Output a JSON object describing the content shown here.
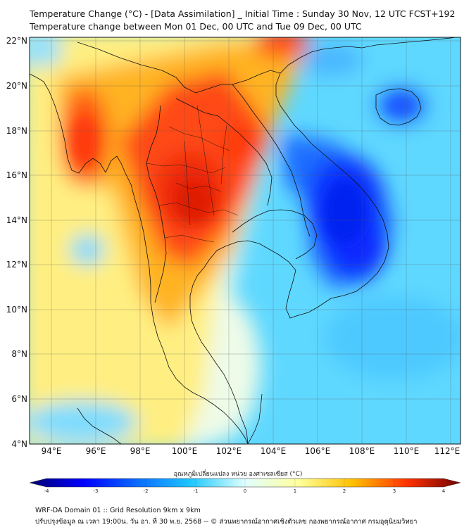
{
  "title_line1": "Temperature Change (°C) - [Data Assimilation] _ Initial Time : Sunday 30 Nov, 12 UTC FCST+192",
  "title_line2": "Temperature change between Mon 01 Dec, 00 UTC and Tue 09 Dec, 00 UTC",
  "lat_labels": [
    "22°N",
    "20°N",
    "18°N",
    "16°N",
    "14°N",
    "12°N",
    "10°N",
    "8°N",
    "6°N",
    "4°N"
  ],
  "lon_labels": [
    "94°E",
    "96°E",
    "98°E",
    "100°E",
    "102°E",
    "104°E",
    "106°E",
    "108°E",
    "110°E",
    "112°E"
  ],
  "colorbar": {
    "title": "อุณหภูมิเปลี่ยนแปลง หน่วย องศาเซลเซียส (°C)",
    "ticks": [
      "-4",
      "-3",
      "-2",
      "-1",
      "0",
      "1",
      "2",
      "3",
      "4"
    ],
    "colors": [
      "#00006e",
      "#0000ff",
      "#0b6bff",
      "#1fc8ff",
      "#e0ffff",
      "#ffff9a",
      "#ffc000",
      "#ff3300",
      "#700000"
    ]
  },
  "footer_line1": "WRF-DA Domain 01 :: Grid Resolution 9km x 9km",
  "footer_line2": "ปรับปรุงข้อมูล ณ เวลา 19:00น. วัน อา. ที่ 30 พ.ย. 2568 -- © ส่วนพยากรณ์อากาศเชิงตัวเลข กองพยากรณ์อากาศ กรมอุตุนิยมวิทยา"
}
